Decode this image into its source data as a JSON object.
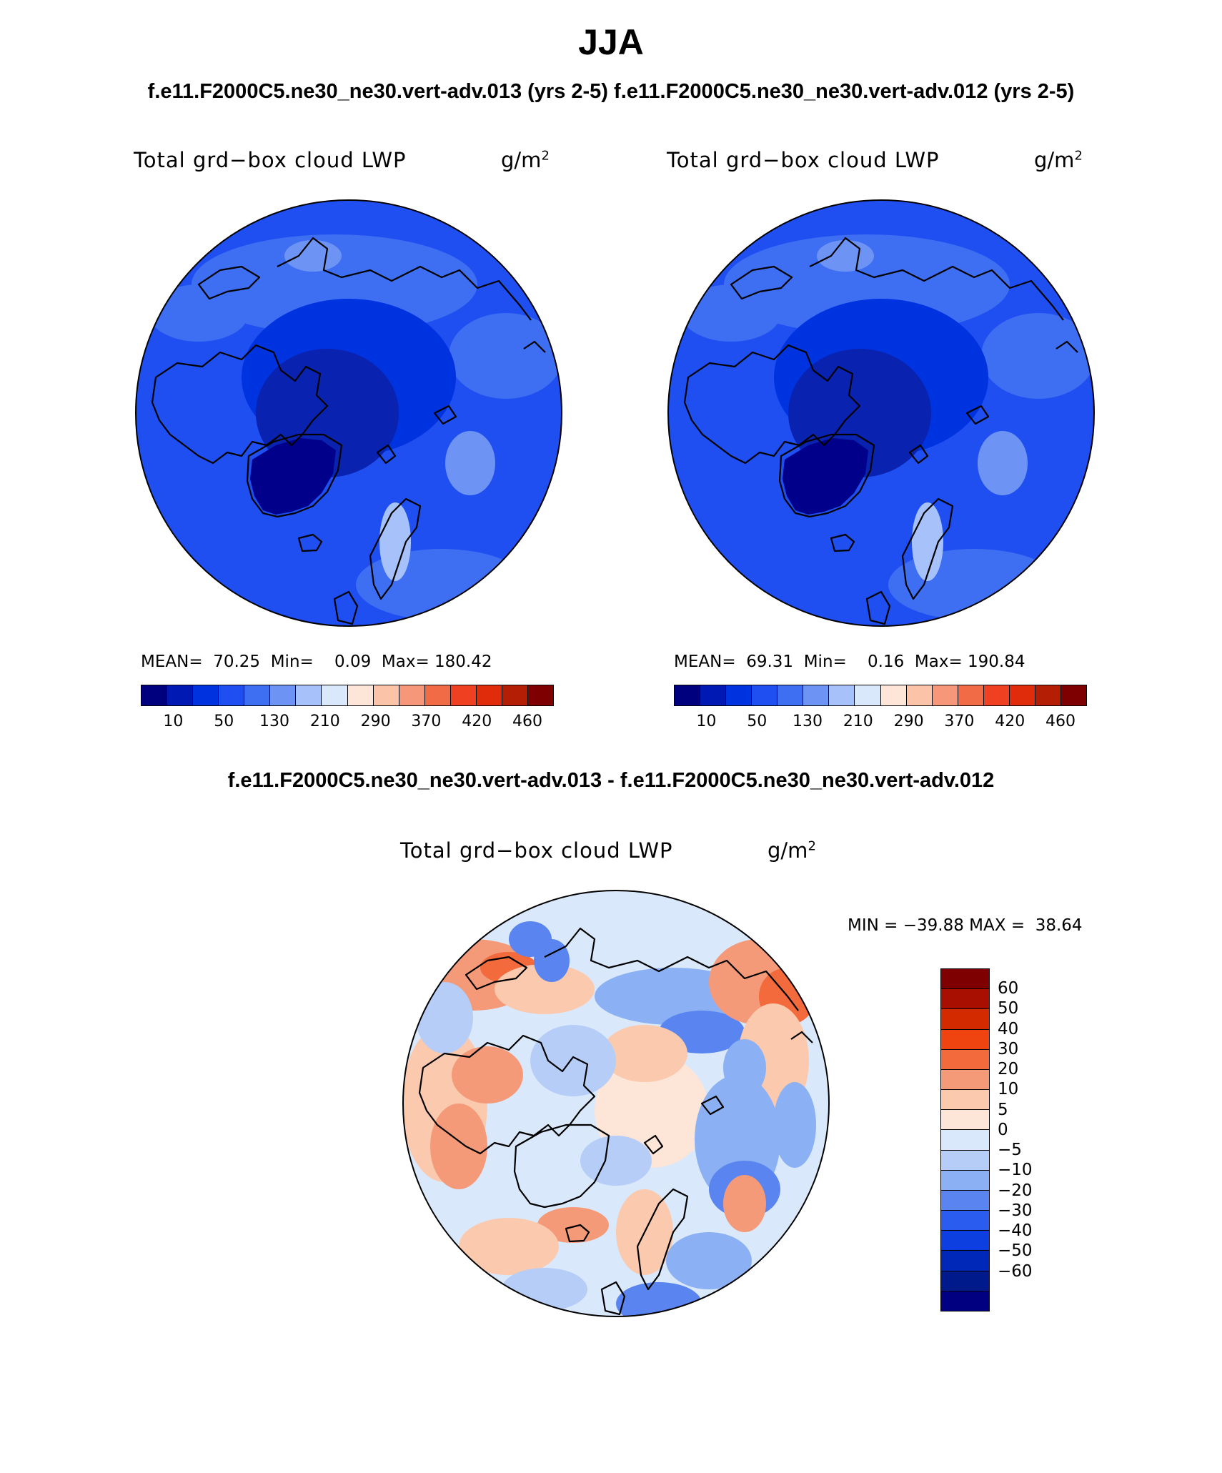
{
  "header": {
    "season": "JJA",
    "case1": "f.e11.F2000C5.ne30_ne30.vert-adv.013 (yrs 2-5)",
    "case2": "f.e11.F2000C5.ne30_ne30.vert-adv.012 (yrs 2-5)",
    "diff_title": "f.e11.F2000C5.ne30_ne30.vert-adv.013 - f.e11.F2000C5.ne30_ne30.vert-adv.012"
  },
  "variable": {
    "name": "Total grd−box cloud LWP",
    "unit": "g/m",
    "unit_sup": "2"
  },
  "panel1": {
    "mean_label": "MEAN=",
    "mean": "70.25",
    "min_label": "Min=",
    "min": "0.09",
    "max_label": "Max=",
    "max": "180.42"
  },
  "panel2": {
    "mean_label": "MEAN=",
    "mean": "69.31",
    "min_label": "Min=",
    "min": "0.16",
    "max_label": "Max=",
    "max": "190.84"
  },
  "abs_colorbar": {
    "colors": [
      "#00007f",
      "#0019b3",
      "#0033e0",
      "#1f4ff0",
      "#3e6ef2",
      "#6d94f5",
      "#a7c2fa",
      "#d9e8fb",
      "#fde6d8",
      "#fbc3a8",
      "#f6977a",
      "#f26b47",
      "#ef4121",
      "#e02c0a",
      "#b41e05",
      "#7f0000"
    ],
    "labels": [
      "10",
      "50",
      "130",
      "210",
      "290",
      "370",
      "420",
      "460"
    ]
  },
  "diff": {
    "min_label": "MIN =",
    "min": "−39.88",
    "max_label": "MAX =",
    "max": "38.64",
    "colors": [
      "#7f0000",
      "#a80f00",
      "#d42a00",
      "#f04410",
      "#f36a3c",
      "#f59a78",
      "#fbc9ad",
      "#fde6d8",
      "#d9e8fb",
      "#b5cdf7",
      "#8bb0f4",
      "#5a85f0",
      "#2a5cf0",
      "#0d3fe0",
      "#0028b8",
      "#001a8c",
      "#000080"
    ],
    "labels": [
      "60",
      "50",
      "40",
      "30",
      "20",
      "10",
      "5",
      "0",
      "−5",
      "−10",
      "−20",
      "−30",
      "−40",
      "−50",
      "−60"
    ]
  },
  "map_colors": {
    "p_dark": "#00008a",
    "p_deep": "#0a22b0",
    "p_mid": "#0033e0",
    "p_base": "#1f4ff0",
    "p_light": "#3e6ef2",
    "p_pale": "#6d94f5",
    "p_paler": "#a7c2fa",
    "d_bg": "#d9e8fb",
    "d_blue1": "#b5cdf7",
    "d_blue2": "#8bb0f4",
    "d_blue3": "#5a85f0",
    "d_red1": "#fde6d8",
    "d_red2": "#fbc9ad",
    "d_red3": "#f59a78",
    "d_red4": "#f36a3c"
  }
}
